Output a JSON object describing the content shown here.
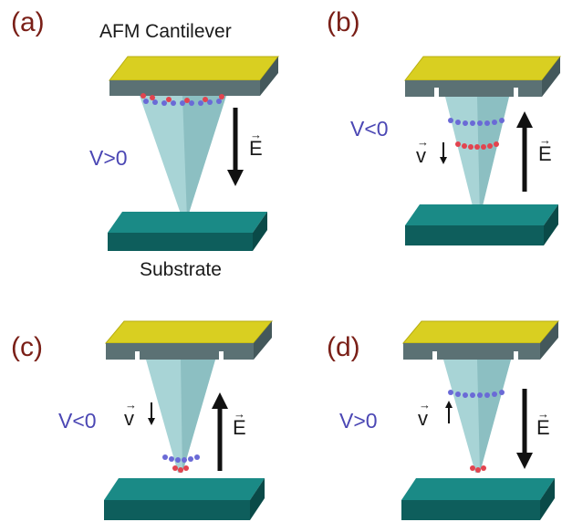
{
  "panels": [
    {
      "label": "(a)",
      "voltage": "V>0",
      "field": "E",
      "velocity": ""
    },
    {
      "label": "(b)",
      "voltage": "V<0",
      "field": "E",
      "velocity": "v"
    },
    {
      "label": "(c)",
      "voltage": "V<0",
      "field": "E",
      "velocity": "v"
    },
    {
      "label": "(d)",
      "voltage": "V>0",
      "field": "E",
      "velocity": "v"
    }
  ],
  "labels": {
    "cantilever": "AFM Cantilever",
    "substrate": "Substrate",
    "vector_mark": "→"
  },
  "colors": {
    "cantilever_top": "#d9cf21",
    "cantilever_body": "#5b7174",
    "tip": "#a8d4d6",
    "substrate": "#0e5e5c",
    "electron_band": "#6a6ad6",
    "ion_band": "#e2444f",
    "panel_label": "#7a1f17",
    "voltage_text": "#4b47b4"
  }
}
